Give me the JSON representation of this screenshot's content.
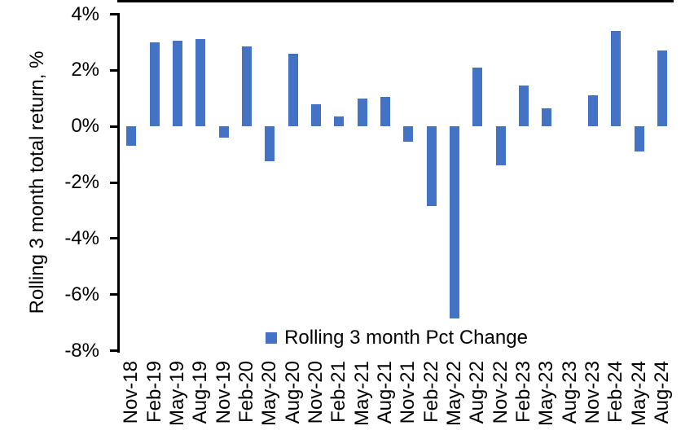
{
  "chart_data": {
    "type": "bar",
    "title": "",
    "xlabel": "",
    "ylabel": "Rolling 3 month total return, %",
    "ylim": [
      -8,
      4
    ],
    "grid": false,
    "legend_label": "Rolling 3 month Pct Change",
    "legend_position": "bottom-center",
    "bar_color": "#4472C4",
    "axis_color": "#000000",
    "background_color": "#FFFFFF",
    "yticks": [
      {
        "value": 4,
        "label": "4%"
      },
      {
        "value": 2,
        "label": "2%"
      },
      {
        "value": 0,
        "label": "0%"
      },
      {
        "value": -2,
        "label": "-2%"
      },
      {
        "value": -4,
        "label": "-4%"
      },
      {
        "value": -6,
        "label": "-6%"
      },
      {
        "value": -8,
        "label": "-8%"
      }
    ],
    "categories": [
      "Nov-18",
      "Feb-19",
      "May-19",
      "Aug-19",
      "Nov-19",
      "Feb-20",
      "May-20",
      "Aug-20",
      "Nov-20",
      "Feb-21",
      "May-21",
      "Aug-21",
      "Nov-21",
      "Feb-22",
      "May-22",
      "Aug-22",
      "Nov-22",
      "Feb-23",
      "May-23",
      "Aug-23",
      "Nov-23",
      "Feb-24",
      "May-24",
      "Aug-24"
    ],
    "values": [
      -0.7,
      3.0,
      3.05,
      3.1,
      -0.4,
      2.85,
      -1.25,
      2.6,
      0.8,
      0.35,
      1.0,
      1.05,
      -0.55,
      -2.85,
      -6.85,
      2.1,
      -1.4,
      1.45,
      0.65,
      0.0,
      1.1,
      3.4,
      -0.9,
      2.7
    ]
  }
}
